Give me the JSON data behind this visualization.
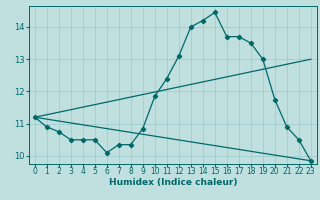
{
  "xlabel": "Humidex (Indice chaleur)",
  "bg_color": "#c0e0e0",
  "grid_color": "#9ecece",
  "line_color": "#006868",
  "xlim": [
    -0.5,
    23.5
  ],
  "ylim": [
    9.75,
    14.65
  ],
  "xticks": [
    0,
    1,
    2,
    3,
    4,
    5,
    6,
    7,
    8,
    9,
    10,
    11,
    12,
    13,
    14,
    15,
    16,
    17,
    18,
    19,
    20,
    21,
    22,
    23
  ],
  "yticks": [
    10,
    11,
    12,
    13,
    14
  ],
  "series1_x": [
    0,
    1,
    2,
    3,
    4,
    5,
    6,
    7,
    8,
    9,
    10,
    11,
    12,
    13,
    14,
    15,
    16,
    17,
    18,
    19,
    20,
    21,
    22,
    23
  ],
  "series1_y": [
    11.2,
    10.9,
    10.75,
    10.5,
    10.5,
    10.5,
    10.1,
    10.35,
    10.35,
    10.85,
    11.85,
    12.4,
    13.1,
    14.0,
    14.2,
    14.45,
    13.7,
    13.7,
    13.5,
    13.0,
    11.75,
    10.9,
    10.5,
    9.85
  ],
  "series2_x": [
    0,
    23
  ],
  "series2_y": [
    11.2,
    13.0
  ],
  "series3_x": [
    0,
    23
  ],
  "series3_y": [
    11.2,
    9.85
  ],
  "marker_size": 2.2,
  "linewidth": 0.9
}
